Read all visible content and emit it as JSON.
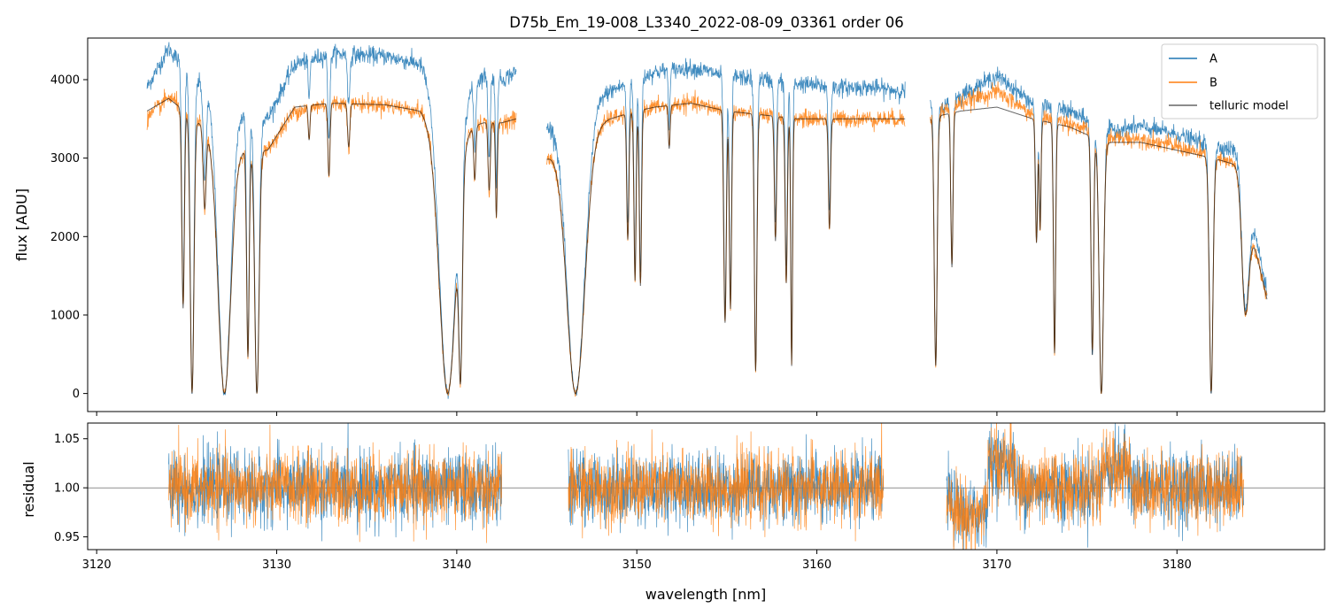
{
  "chart_data": [
    {
      "type": "line",
      "title": "D75b_Em_19-008_L3340_2022-08-09_03361  order 06",
      "xlabel": "",
      "ylabel": "flux [ADU]",
      "xlim": [
        3119.5,
        3188.2
      ],
      "ylim": [
        -230,
        4530
      ],
      "yticks": [
        0,
        1000,
        2000,
        3000,
        4000
      ],
      "yticklabels": [
        "0",
        "1000",
        "2000",
        "3000",
        "4000"
      ],
      "xticks": [
        3120,
        3130,
        3140,
        3150,
        3160,
        3170,
        3180
      ],
      "legend": {
        "position": "top-right",
        "entries": [
          "A",
          "B",
          "telluric model"
        ]
      },
      "colors": {
        "A": "#1f77b4",
        "B": "#ff7f0e",
        "telluric model": "#000000"
      },
      "segments": [
        [
          3122.8,
          3143.3
        ],
        [
          3145.0,
          3164.9
        ],
        [
          3166.3,
          3185.0
        ]
      ],
      "continuum_knots": {
        "x": [
          3122.8,
          3124.0,
          3125.0,
          3126.5,
          3128.0,
          3129.5,
          3131.0,
          3133.0,
          3136.0,
          3138.0,
          3139.2,
          3140.5,
          3141.5,
          3142.5,
          3143.3,
          3145.0,
          3146.0,
          3147.2,
          3148.5,
          3150.0,
          3151.0,
          3153.0,
          3155.0,
          3157.0,
          3159.0,
          3161.0,
          3163.0,
          3164.9,
          3166.3,
          3167.0,
          3168.0,
          3170.0,
          3172.0,
          3174.0,
          3176.0,
          3178.0,
          3180.0,
          3182.0,
          3183.5,
          3184.2,
          3185.0
        ],
        "A": [
          3900,
          4400,
          4100,
          3800,
          3600,
          3500,
          4200,
          4330,
          4300,
          4200,
          3700,
          3850,
          4050,
          4000,
          4100,
          3400,
          3600,
          3700,
          3850,
          4000,
          4100,
          4150,
          4050,
          4000,
          3950,
          3900,
          3900,
          3850,
          3700,
          3650,
          3800,
          4050,
          3700,
          3600,
          3350,
          3400,
          3300,
          3150,
          3100,
          2200,
          1300
        ],
        "B": [
          3500,
          3780,
          3600,
          3300,
          3100,
          3100,
          3600,
          3700,
          3680,
          3600,
          3250,
          3400,
          3450,
          3450,
          3500,
          3000,
          3200,
          3350,
          3500,
          3600,
          3650,
          3700,
          3600,
          3550,
          3500,
          3500,
          3500,
          3500,
          3550,
          3600,
          3700,
          3850,
          3550,
          3450,
          3250,
          3250,
          3150,
          3000,
          2900,
          2000,
          1200
        ],
        "model": [
          3600,
          3760,
          3580,
          3280,
          3100,
          3100,
          3650,
          3700,
          3680,
          3600,
          3250,
          3380,
          3450,
          3450,
          3500,
          3000,
          3200,
          3350,
          3500,
          3600,
          3650,
          3700,
          3600,
          3550,
          3500,
          3500,
          3500,
          3500,
          3500,
          3550,
          3600,
          3650,
          3500,
          3400,
          3200,
          3200,
          3100,
          3000,
          2900,
          2000,
          1200
        ]
      },
      "absorption_lines": [
        {
          "center": 3124.8,
          "depth": 0.7,
          "width": 0.07
        },
        {
          "center": 3125.3,
          "depth": 1.0,
          "width": 0.1
        },
        {
          "center": 3126.0,
          "depth": 0.3,
          "width": 0.08
        },
        {
          "center": 3127.1,
          "depth": 1.0,
          "width": 0.35
        },
        {
          "center": 3128.4,
          "depth": 0.85,
          "width": 0.07
        },
        {
          "center": 3128.9,
          "depth": 1.0,
          "width": 0.12
        },
        {
          "center": 3131.8,
          "depth": 0.12,
          "width": 0.05
        },
        {
          "center": 3132.9,
          "depth": 0.25,
          "width": 0.06
        },
        {
          "center": 3134.0,
          "depth": 0.15,
          "width": 0.06
        },
        {
          "center": 3139.5,
          "depth": 1.0,
          "width": 0.45
        },
        {
          "center": 3140.2,
          "depth": 0.95,
          "width": 0.1
        },
        {
          "center": 3141.0,
          "depth": 0.2,
          "width": 0.06
        },
        {
          "center": 3141.8,
          "depth": 0.25,
          "width": 0.06
        },
        {
          "center": 3142.2,
          "depth": 0.35,
          "width": 0.05
        },
        {
          "center": 3146.6,
          "depth": 1.0,
          "width": 0.5
        },
        {
          "center": 3149.5,
          "depth": 0.45,
          "width": 0.06
        },
        {
          "center": 3149.9,
          "depth": 0.6,
          "width": 0.06
        },
        {
          "center": 3150.2,
          "depth": 0.62,
          "width": 0.06
        },
        {
          "center": 3151.8,
          "depth": 0.15,
          "width": 0.05
        },
        {
          "center": 3154.9,
          "depth": 0.75,
          "width": 0.07
        },
        {
          "center": 3155.2,
          "depth": 0.7,
          "width": 0.06
        },
        {
          "center": 3156.6,
          "depth": 0.92,
          "width": 0.07
        },
        {
          "center": 3157.7,
          "depth": 0.45,
          "width": 0.06
        },
        {
          "center": 3158.3,
          "depth": 0.6,
          "width": 0.06
        },
        {
          "center": 3158.6,
          "depth": 0.9,
          "width": 0.05
        },
        {
          "center": 3160.7,
          "depth": 0.4,
          "width": 0.06
        },
        {
          "center": 3166.6,
          "depth": 0.9,
          "width": 0.08
        },
        {
          "center": 3167.5,
          "depth": 0.55,
          "width": 0.06
        },
        {
          "center": 3172.2,
          "depth": 0.45,
          "width": 0.06
        },
        {
          "center": 3172.4,
          "depth": 0.4,
          "width": 0.05
        },
        {
          "center": 3173.2,
          "depth": 0.85,
          "width": 0.06
        },
        {
          "center": 3175.3,
          "depth": 0.85,
          "width": 0.07
        },
        {
          "center": 3175.8,
          "depth": 1.0,
          "width": 0.12
        },
        {
          "center": 3181.9,
          "depth": 1.0,
          "width": 0.1
        },
        {
          "center": 3183.8,
          "depth": 0.6,
          "width": 0.2
        }
      ]
    },
    {
      "type": "line",
      "title": "",
      "xlabel": "wavelength [nm]",
      "ylabel": "residual",
      "xlim": [
        3119.5,
        3188.2
      ],
      "ylim": [
        0.937,
        1.066
      ],
      "yticks": [
        0.95,
        1.0,
        1.05
      ],
      "yticklabels": [
        "0.95",
        "1.00",
        "1.05"
      ],
      "xticks": [
        3120,
        3130,
        3140,
        3150,
        3160,
        3170,
        3180
      ],
      "xticklabels": [
        "3120",
        "3130",
        "3140",
        "3150",
        "3160",
        "3170",
        "3180"
      ],
      "reference_line": 1.0,
      "segments": [
        [
          3124.0,
          3142.5
        ],
        [
          3146.2,
          3163.7
        ],
        [
          3167.2,
          3183.7
        ]
      ],
      "noise_sigma": 0.018
    }
  ]
}
